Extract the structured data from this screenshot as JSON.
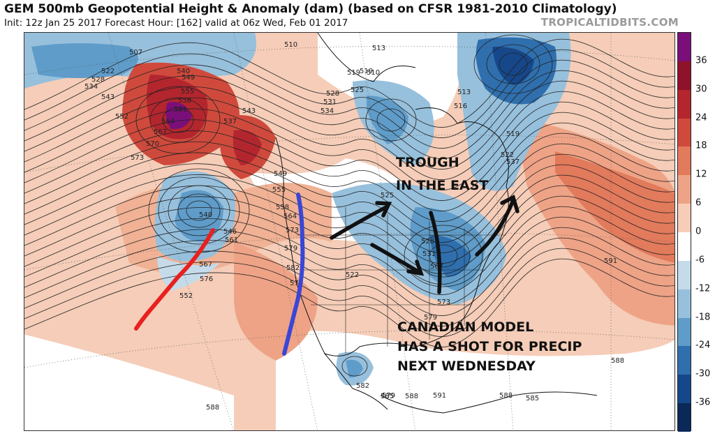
{
  "header": {
    "title": "GEM 500mb Geopotential Height & Anomaly (dam) (based on CFSR 1981-2010 Climatology)",
    "subtitle": "Init: 12z Jan 25 2017   Forecast Hour: [162]   valid at 06z Wed, Feb 01 2017",
    "watermark": "TROPICALTIDBITS.COM"
  },
  "colorbar": {
    "labels": [
      "36",
      "30",
      "24",
      "18",
      "12",
      "6",
      "0",
      "-6",
      "-12",
      "-18",
      "-24",
      "-30",
      "-36"
    ],
    "colors": [
      "#7a0f7a",
      "#8e1229",
      "#b3262e",
      "#cf4a3c",
      "#e27a5c",
      "#eea386",
      "#f7cdb8",
      "#ffffff",
      "#c5dbea",
      "#97c0dc",
      "#5f9cc9",
      "#2f6fae",
      "#16478a",
      "#0a2858"
    ]
  },
  "annotations": {
    "trough_line1": "TROUGH",
    "trough_line2": "IN THE EAST",
    "model_line1": "CANADIAN MODEL",
    "model_line2": "HAS A SHOT FOR PRECIP",
    "model_line3": "NEXT WEDNESDAY"
  },
  "contour_labels": [
    "507",
    "522",
    "528",
    "534",
    "543",
    "552",
    "540",
    "549",
    "555",
    "558",
    "561",
    "564",
    "567",
    "570",
    "573",
    "543",
    "537",
    "510",
    "513",
    "519",
    "525",
    "528",
    "531",
    "534",
    "510",
    "519",
    "513",
    "516",
    "519",
    "522",
    "537",
    "540",
    "546",
    "561",
    "567",
    "576",
    "552",
    "549",
    "555",
    "558",
    "564",
    "573",
    "579",
    "582",
    "570",
    "522",
    "525",
    "528",
    "531",
    "567",
    "573",
    "579",
    "582",
    "585",
    "588",
    "591",
    "591",
    "588",
    "588",
    "588",
    "585",
    "579",
    "588"
  ],
  "colors": {
    "red_line": "#e8201e",
    "blue_line": "#3a46d6",
    "arrow": "#111111"
  }
}
